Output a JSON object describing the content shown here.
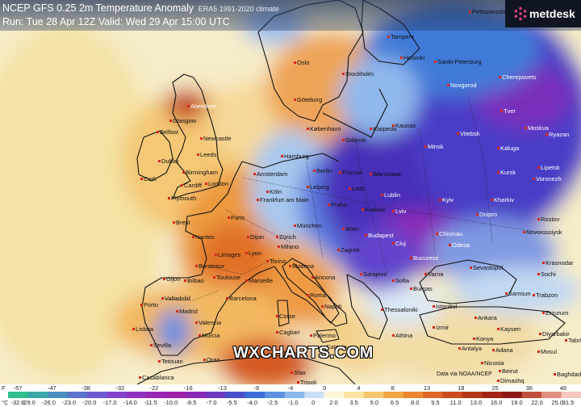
{
  "header": {
    "title": "NCEP GFS 0.25 2m Temperature Anomaly",
    "climate": "ERA5 1991-2020 climate",
    "run_line": "Run: Tue 28 Apr 12Z Valid: Wed 29 Apr 15:00 UTC"
  },
  "brand": {
    "logo_text": "metdesk",
    "watermark": "WXCHARTS.COM",
    "credit": "Data via NOAA/NCEP"
  },
  "cities": [
    "Tampere",
    "Petrozavodsk",
    "Helsinki",
    "Sankt-Peterburg",
    "Oslo",
    "Stockholm",
    "Novgorod",
    "Cherepovets",
    "Göteborg",
    "Tver",
    "Aberdeen",
    "Moskva",
    "Kaunas",
    "Klaipeda",
    "Vitebsk",
    "Ryazan",
    "Glasgow",
    "Newcastle",
    "København",
    "Minsk",
    "Kaluga",
    "Belfast",
    "Leeds",
    "Hamburg",
    "Dublin",
    "Gdansk",
    "Lipetsk",
    "Cork",
    "Birmingham",
    "Amsterdam",
    "Poznan",
    "Warszawa",
    "Kursk",
    "Voronezh",
    "Cardiff",
    "London",
    "Berlin",
    "Kharkiv",
    "Kyiv",
    "Plymouth",
    "Köln",
    "Leipzig",
    "Lódz",
    "Lublin",
    "Lviv",
    "Frankfurt am Main",
    "Kraków",
    "Dnipro",
    "Rostov",
    "Paris",
    "Praha",
    "Brest",
    "Nantes",
    "Dijon",
    "München",
    "Wien",
    "Budapest",
    "Chisinau",
    "Novorossiysk",
    "Odesa",
    "Zürich",
    "Lyon",
    "Cluj",
    "Milano",
    "Zagreb",
    "Krasnodar",
    "Limoges",
    "Bordeaux",
    "Torino",
    "Bucuresti",
    "Sevastopol",
    "Modena",
    "Gijon",
    "Bilbao",
    "Toulouse",
    "Marseille",
    "Ancona",
    "Sarajevo",
    "Varna",
    "Sochi",
    "Burgas",
    "Porto",
    "Valladolid",
    "Barcelona",
    "Roma",
    "Napoli",
    "Sofia",
    "Thessaloniki",
    "Istanbul",
    "Samsun",
    "Trabzon",
    "Madrid",
    "Ankara",
    "Erzurum",
    "Lisboa",
    "Valencia",
    "Cagliari",
    "Kayseri",
    "Diyarbakir",
    "Sevilla",
    "Murcia",
    "Palermo",
    "Konya",
    "Tabriz",
    "Athina",
    "Antalya",
    "Adana",
    "Mosul",
    "Tetouan",
    "Oran",
    "Alger",
    "Tunis",
    "Nicosia",
    "Beirut",
    "Casablanca",
    "Sfax",
    "Tripoli",
    "Dimashq",
    "Baghdad",
    "Izmir",
    "Catania",
    "Corse"
  ],
  "legend": {
    "unit_f": "F",
    "unit_c": "°C",
    "f_labels": [
      "-57",
      "-47",
      "-38",
      "-32",
      "-22",
      "-16",
      "-13",
      "-9",
      "-4",
      "0",
      "4",
      "8",
      "13",
      "18",
      "25",
      "36",
      "46"
    ],
    "c_labels": [
      "-32.0",
      "-29.0",
      "-26.0",
      "-23.0",
      "-20.0",
      "-17.0",
      "-14.0",
      "-11.5",
      "-10.0",
      "-8.5",
      "-7.0",
      "-5.5",
      "-4.0",
      "-2.5",
      "-1.0",
      "0",
      "2.0",
      "3.5",
      "5.0",
      "6.5",
      "8.0",
      "9.5",
      "11.0",
      "13.0",
      "16.0",
      "19.0",
      "22.0",
      "25.0",
      "31.5"
    ],
    "colors": [
      "#2fbf8f",
      "#3aa7a9",
      "#4a8fc1",
      "#5b74cc",
      "#6e5ad0",
      "#8142cc",
      "#8f30c0",
      "#9a24b4",
      "#9d1fa8",
      "#8a28b5",
      "#6d38c0",
      "#4a4fcb",
      "#3b6fd6",
      "#5a94e0",
      "#8ab8ea",
      "#c9dff3",
      "#fff8d8",
      "#fbe3a0",
      "#f6c66c",
      "#f2a646",
      "#ec8631",
      "#e06626",
      "#cd4b1f",
      "#b8351a",
      "#a42516",
      "#8e1a14",
      "#c24f3c",
      "#e08e7f",
      "#f4c7c0"
    ],
    "color_semantics": "blue/purple = colder than climate, yellow/orange/red = warmer than climate"
  }
}
